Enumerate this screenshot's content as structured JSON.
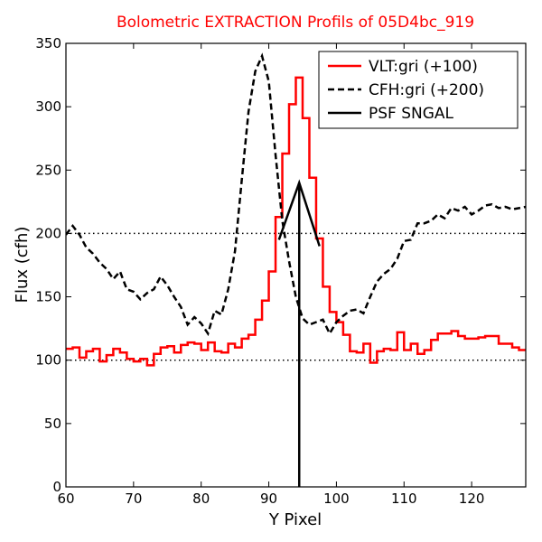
{
  "chart_data": {
    "type": "line",
    "title": "Bolometric EXTRACTION Profils of 05D4bc_919",
    "title_color": "#ff0000",
    "xlabel": "Y Pixel",
    "ylabel": "Flux (cfh)",
    "xlim": [
      60,
      128
    ],
    "ylim": [
      0,
      350
    ],
    "xticks": [
      60,
      70,
      80,
      90,
      100,
      110,
      120
    ],
    "yticks": [
      0,
      50,
      100,
      150,
      200,
      250,
      300,
      350
    ],
    "grid": false,
    "legend_position": "top-right",
    "reference_lines": [
      100,
      200
    ],
    "psf_vertical_line_x": 94.5,
    "series": [
      {
        "name": "VLT:gri (+100)",
        "color": "#ff0000",
        "style": "solid",
        "drawstyle": "steps",
        "x": [
          60,
          61,
          62,
          63,
          64,
          65,
          66,
          67,
          68,
          69,
          70,
          71,
          72,
          73,
          74,
          75,
          76,
          77,
          78,
          79,
          80,
          81,
          82,
          83,
          84,
          85,
          86,
          87,
          88,
          89,
          90,
          91,
          92,
          93,
          94,
          95,
          96,
          97,
          98,
          99,
          100,
          101,
          102,
          103,
          104,
          105,
          106,
          107,
          108,
          109,
          110,
          111,
          112,
          113,
          114,
          115,
          116,
          117,
          118,
          119,
          120,
          121,
          122,
          123,
          124,
          125,
          126,
          127
        ],
        "y": [
          109,
          110,
          102,
          107,
          109,
          99,
          104,
          109,
          106,
          101,
          99,
          101,
          96,
          105,
          110,
          111,
          106,
          112,
          114,
          113,
          108,
          114,
          107,
          106,
          113,
          110,
          117,
          120,
          132,
          147,
          170,
          213,
          263,
          302,
          323,
          291,
          244,
          196,
          158,
          138,
          130,
          120,
          107,
          106,
          113,
          98,
          107,
          109,
          108,
          122,
          108,
          113,
          105,
          108,
          116,
          121,
          121,
          123,
          119,
          117,
          117,
          118,
          119,
          119,
          113,
          113,
          110,
          108
        ]
      },
      {
        "name": "CFH:gri (+200)",
        "color": "#000000",
        "style": "dashed",
        "x": [
          60,
          61,
          62,
          63,
          64,
          65,
          66,
          67,
          68,
          69,
          70,
          71,
          72,
          73,
          74,
          75,
          76,
          77,
          78,
          79,
          80,
          81,
          82,
          83,
          84,
          85,
          86,
          87,
          88,
          89,
          90,
          91,
          92,
          93,
          94,
          95,
          96,
          97,
          98,
          99,
          100,
          101,
          102,
          103,
          104,
          105,
          106,
          107,
          108,
          109,
          110,
          111,
          112,
          113,
          114,
          115,
          116,
          117,
          118,
          119,
          120,
          121,
          122,
          123,
          124,
          125,
          126,
          127,
          128
        ],
        "y": [
          199,
          206,
          199,
          189,
          184,
          177,
          172,
          164,
          170,
          156,
          154,
          148,
          153,
          156,
          166,
          159,
          150,
          142,
          128,
          134,
          129,
          121,
          139,
          136,
          156,
          186,
          242,
          296,
          328,
          340,
          320,
          262,
          210,
          178,
          150,
          133,
          128,
          130,
          132,
          121,
          130,
          135,
          139,
          140,
          137,
          150,
          162,
          168,
          172,
          180,
          194,
          195,
          208,
          208,
          210,
          215,
          212,
          220,
          218,
          221,
          215,
          218,
          222,
          223,
          220,
          221,
          219,
          220,
          221
        ]
      },
      {
        "name": "PSF SNGAL",
        "color": "#000000",
        "style": "solid",
        "x": [
          91.5,
          94.5,
          97.5
        ],
        "y": [
          195,
          240,
          190
        ]
      }
    ]
  }
}
